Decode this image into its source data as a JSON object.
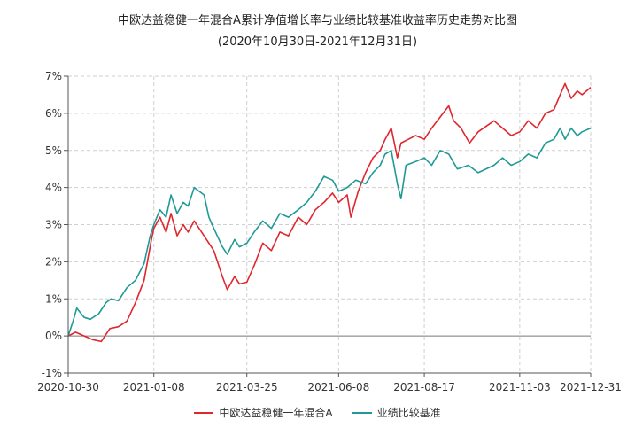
{
  "chart_data": {
    "type": "line",
    "title": "中欧达益稳健一年混合A累计净值增长率与业绩比较基准收益率历史走势对比图",
    "subtitle": "(2020年10月30日-2021年12月31日)",
    "y_tick_labels": [
      "-1%",
      "0%",
      "1%",
      "2%",
      "3%",
      "4%",
      "5%",
      "6%",
      "7%"
    ],
    "x_tick_labels": [
      "2020-10-30",
      "2021-01-08",
      "2021-03-25",
      "2021-06-08",
      "2021-08-17",
      "2021-11-03",
      "2021-12-31"
    ],
    "ylim": [
      -1,
      7
    ],
    "y_unit": "%",
    "grid": true,
    "legend_position": "bottom",
    "series": [
      {
        "name": "中欧达益稳健一年混合A",
        "color": "#e0262e",
        "points": [
          [
            "2020-10-30",
            0.0
          ],
          [
            "2020-11-05",
            0.1
          ],
          [
            "2020-11-12",
            0.0
          ],
          [
            "2020-11-19",
            -0.1
          ],
          [
            "2020-11-26",
            -0.15
          ],
          [
            "2020-12-03",
            0.2
          ],
          [
            "2020-12-10",
            0.25
          ],
          [
            "2020-12-17",
            0.4
          ],
          [
            "2020-12-24",
            0.9
          ],
          [
            "2020-12-31",
            1.5
          ],
          [
            "2021-01-06",
            2.6
          ],
          [
            "2021-01-08",
            2.9
          ],
          [
            "2021-01-13",
            3.2
          ],
          [
            "2021-01-18",
            2.8
          ],
          [
            "2021-01-22",
            3.3
          ],
          [
            "2021-01-27",
            2.7
          ],
          [
            "2021-02-01",
            3.0
          ],
          [
            "2021-02-05",
            2.8
          ],
          [
            "2021-02-10",
            3.1
          ],
          [
            "2021-02-22",
            2.5
          ],
          [
            "2021-02-26",
            2.3
          ],
          [
            "2021-03-05",
            1.6
          ],
          [
            "2021-03-09",
            1.25
          ],
          [
            "2021-03-15",
            1.6
          ],
          [
            "2021-03-19",
            1.4
          ],
          [
            "2021-03-25",
            1.45
          ],
          [
            "2021-03-31",
            1.9
          ],
          [
            "2021-04-07",
            2.5
          ],
          [
            "2021-04-14",
            2.3
          ],
          [
            "2021-04-21",
            2.8
          ],
          [
            "2021-04-28",
            2.7
          ],
          [
            "2021-05-06",
            3.2
          ],
          [
            "2021-05-13",
            3.0
          ],
          [
            "2021-05-20",
            3.4
          ],
          [
            "2021-05-27",
            3.6
          ],
          [
            "2021-06-03",
            3.85
          ],
          [
            "2021-06-08",
            3.6
          ],
          [
            "2021-06-15",
            3.8
          ],
          [
            "2021-06-18",
            3.2
          ],
          [
            "2021-06-24",
            3.9
          ],
          [
            "2021-06-30",
            4.4
          ],
          [
            "2021-07-06",
            4.8
          ],
          [
            "2021-07-12",
            5.0
          ],
          [
            "2021-07-16",
            5.3
          ],
          [
            "2021-07-21",
            5.6
          ],
          [
            "2021-07-26",
            4.8
          ],
          [
            "2021-07-29",
            5.2
          ],
          [
            "2021-08-04",
            5.3
          ],
          [
            "2021-08-10",
            5.4
          ],
          [
            "2021-08-17",
            5.3
          ],
          [
            "2021-08-23",
            5.6
          ],
          [
            "2021-08-30",
            5.9
          ],
          [
            "2021-09-06",
            6.2
          ],
          [
            "2021-09-10",
            5.8
          ],
          [
            "2021-09-16",
            5.6
          ],
          [
            "2021-09-23",
            5.2
          ],
          [
            "2021-09-30",
            5.5
          ],
          [
            "2021-10-13",
            5.8
          ],
          [
            "2021-10-20",
            5.6
          ],
          [
            "2021-10-27",
            5.4
          ],
          [
            "2021-11-03",
            5.5
          ],
          [
            "2021-11-10",
            5.8
          ],
          [
            "2021-11-17",
            5.6
          ],
          [
            "2021-11-24",
            6.0
          ],
          [
            "2021-12-01",
            6.1
          ],
          [
            "2021-12-06",
            6.5
          ],
          [
            "2021-12-10",
            6.8
          ],
          [
            "2021-12-15",
            6.4
          ],
          [
            "2021-12-20",
            6.6
          ],
          [
            "2021-12-24",
            6.5
          ],
          [
            "2021-12-31",
            6.7
          ]
        ]
      },
      {
        "name": "业绩比较基准",
        "color": "#1f9a96",
        "points": [
          [
            "2020-10-30",
            0.0
          ],
          [
            "2020-11-03",
            0.4
          ],
          [
            "2020-11-06",
            0.75
          ],
          [
            "2020-11-12",
            0.5
          ],
          [
            "2020-11-17",
            0.45
          ],
          [
            "2020-11-24",
            0.6
          ],
          [
            "2020-11-30",
            0.9
          ],
          [
            "2020-12-04",
            1.0
          ],
          [
            "2020-12-10",
            0.95
          ],
          [
            "2020-12-17",
            1.3
          ],
          [
            "2020-12-24",
            1.5
          ],
          [
            "2020-12-31",
            1.95
          ],
          [
            "2021-01-05",
            2.7
          ],
          [
            "2021-01-08",
            3.0
          ],
          [
            "2021-01-13",
            3.4
          ],
          [
            "2021-01-18",
            3.2
          ],
          [
            "2021-01-22",
            3.8
          ],
          [
            "2021-01-27",
            3.3
          ],
          [
            "2021-02-01",
            3.6
          ],
          [
            "2021-02-05",
            3.5
          ],
          [
            "2021-02-10",
            4.0
          ],
          [
            "2021-02-18",
            3.8
          ],
          [
            "2021-02-22",
            3.2
          ],
          [
            "2021-02-26",
            2.9
          ],
          [
            "2021-03-05",
            2.4
          ],
          [
            "2021-03-09",
            2.2
          ],
          [
            "2021-03-15",
            2.6
          ],
          [
            "2021-03-19",
            2.4
          ],
          [
            "2021-03-25",
            2.5
          ],
          [
            "2021-03-31",
            2.8
          ],
          [
            "2021-04-07",
            3.1
          ],
          [
            "2021-04-14",
            2.9
          ],
          [
            "2021-04-21",
            3.3
          ],
          [
            "2021-04-28",
            3.2
          ],
          [
            "2021-05-06",
            3.4
          ],
          [
            "2021-05-13",
            3.6
          ],
          [
            "2021-05-20",
            3.9
          ],
          [
            "2021-05-27",
            4.3
          ],
          [
            "2021-06-03",
            4.2
          ],
          [
            "2021-06-08",
            3.9
          ],
          [
            "2021-06-15",
            4.0
          ],
          [
            "2021-06-22",
            4.2
          ],
          [
            "2021-06-30",
            4.1
          ],
          [
            "2021-07-06",
            4.4
          ],
          [
            "2021-07-12",
            4.6
          ],
          [
            "2021-07-16",
            4.9
          ],
          [
            "2021-07-21",
            5.0
          ],
          [
            "2021-07-26",
            4.1
          ],
          [
            "2021-07-29",
            3.7
          ],
          [
            "2021-08-02",
            4.6
          ],
          [
            "2021-08-10",
            4.7
          ],
          [
            "2021-08-17",
            4.8
          ],
          [
            "2021-08-23",
            4.6
          ],
          [
            "2021-08-30",
            5.0
          ],
          [
            "2021-09-06",
            4.9
          ],
          [
            "2021-09-13",
            4.5
          ],
          [
            "2021-09-22",
            4.6
          ],
          [
            "2021-09-30",
            4.4
          ],
          [
            "2021-10-13",
            4.6
          ],
          [
            "2021-10-20",
            4.8
          ],
          [
            "2021-10-27",
            4.6
          ],
          [
            "2021-11-03",
            4.7
          ],
          [
            "2021-11-10",
            4.9
          ],
          [
            "2021-11-17",
            4.8
          ],
          [
            "2021-11-24",
            5.2
          ],
          [
            "2021-12-01",
            5.3
          ],
          [
            "2021-12-06",
            5.6
          ],
          [
            "2021-12-10",
            5.3
          ],
          [
            "2021-12-15",
            5.6
          ],
          [
            "2021-12-20",
            5.4
          ],
          [
            "2021-12-24",
            5.5
          ],
          [
            "2021-12-31",
            5.6
          ]
        ]
      }
    ]
  }
}
